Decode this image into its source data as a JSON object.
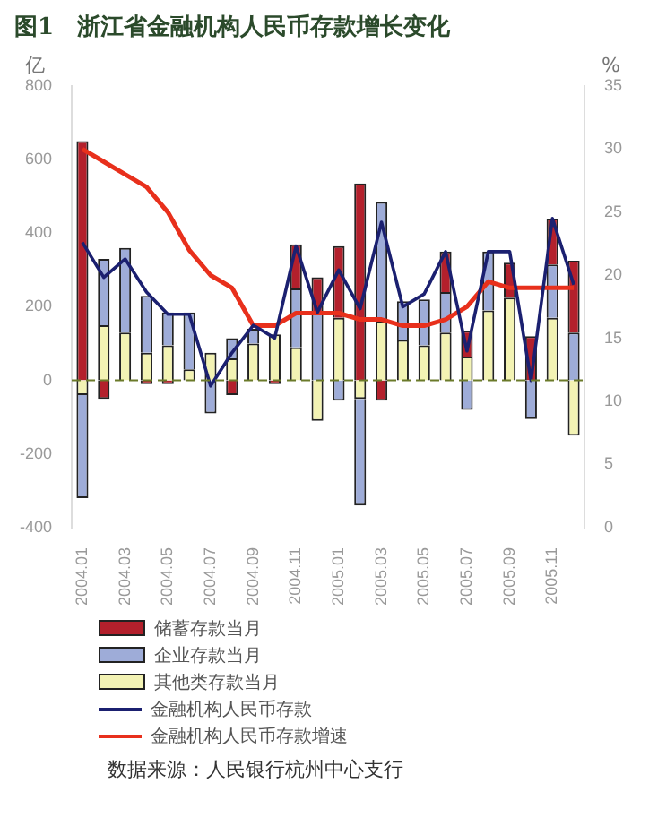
{
  "chart_data": {
    "type": "bar",
    "title": "图1　浙江省金融机构人民币存款增长变化",
    "ylabel": "亿",
    "y2label": "%",
    "categories": [
      "2004.01",
      null,
      "2004.03",
      null,
      "2004.05",
      null,
      "2004.07",
      null,
      "2004.09",
      null,
      "2004.11",
      null,
      "2005.01",
      null,
      "2005.03",
      null,
      "2005.05",
      null,
      "2005.07",
      null,
      "2005.09",
      null,
      "2005.11",
      null
    ],
    "stacked": true,
    "series": [
      {
        "name": "其他类存款当月",
        "color": "#f3f3b4",
        "values": [
          -40,
          150,
          130,
          75,
          95,
          30,
          75,
          60,
          100,
          125,
          90,
          -110,
          170,
          -50,
          160,
          110,
          95,
          130,
          65,
          190,
          225,
          0,
          170,
          -150
        ]
      },
      {
        "name": "企业存款当月",
        "color": "#9eacd8",
        "values": [
          -280,
          180,
          230,
          155,
          90,
          155,
          -90,
          55,
          40,
          0,
          160,
          185,
          -55,
          -290,
          325,
          105,
          125,
          110,
          -80,
          160,
          null,
          -105,
          145,
          130
        ]
      },
      {
        "name": "储蓄存款当月",
        "color": "#b3202c",
        "values": [
          650,
          -50,
          null,
          -10,
          -10,
          0,
          0,
          -40,
          null,
          -10,
          120,
          95,
          195,
          535,
          -55,
          null,
          0,
          110,
          70,
          0,
          95,
          120,
          125,
          195
        ]
      },
      {
        "name": "金融机构人民币存款",
        "type": "line",
        "color": "#1b2070",
        "values": [
          375,
          280,
          330,
          240,
          180,
          180,
          -15,
          75,
          150,
          115,
          365,
          185,
          300,
          195,
          430,
          200,
          235,
          350,
          80,
          350,
          350,
          0,
          440,
          260
        ]
      },
      {
        "name": "金融机构人民币存款增速",
        "type": "line",
        "axis": "y2",
        "color": "#e8301c",
        "values": [
          30,
          29,
          28,
          27,
          25,
          22,
          20,
          19,
          16,
          16,
          17,
          17,
          17,
          16.5,
          16.5,
          16,
          16,
          16.5,
          17.5,
          19.5,
          19,
          19,
          19,
          19
        ]
      }
    ],
    "ylim": [
      -400,
      800
    ],
    "yticks": [
      -400,
      -200,
      0,
      200,
      400,
      600,
      800
    ],
    "y2lim": [
      0,
      35
    ],
    "y2ticks": [
      0,
      5,
      10,
      15,
      20,
      25,
      30,
      35
    ],
    "ref_lines": [
      {
        "axis": "y",
        "value": 0,
        "color": "#6b7a2a",
        "line_style": "dashed"
      }
    ],
    "grid": false,
    "legend": "bottom",
    "marker": "none",
    "annotations": [
      "数据来源：人民银行杭州中心支行"
    ]
  }
}
